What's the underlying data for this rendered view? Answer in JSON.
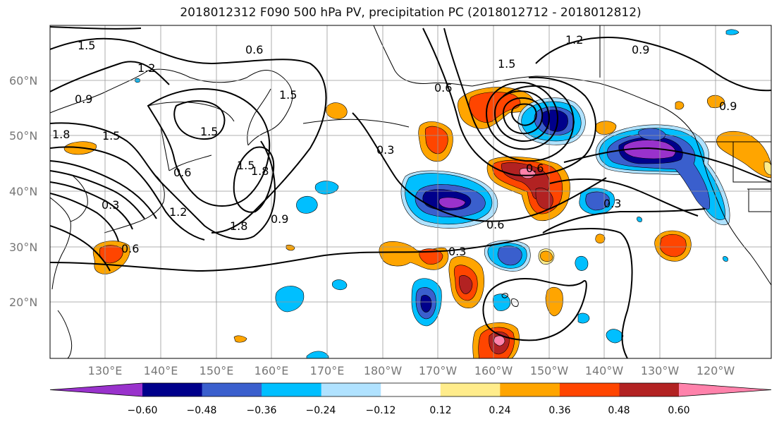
{
  "title": "2018012312 F090 500 hPa PV, precipitation PC (2018012712 - 2018012812)",
  "latitude_labels": [
    "60°N",
    "50°N",
    "40°N",
    "30°N",
    "20°N"
  ],
  "longitude_labels": [
    "130°E",
    "140°E",
    "150°E",
    "160°E",
    "170°E",
    "180°W",
    "170°W",
    "160°W",
    "150°W",
    "140°W",
    "130°W",
    "120°W"
  ],
  "contour_labels": [
    "1.5",
    "1.2",
    "0.6",
    "0.9",
    "1.5",
    "1.8",
    "1.5",
    "1.5",
    "0.6",
    "1.5",
    "1.8",
    "0.3",
    "1.2",
    "0.9",
    "1.8",
    "0.6",
    "0.3",
    "0.6",
    "0.6",
    "1.5",
    "1.2",
    "0.9",
    "0.9",
    "0.3",
    "0.6",
    "0.3"
  ],
  "colorbar": {
    "colors": [
      "#9932cc",
      "#00008b",
      "#3a5fcd",
      "#00bfff",
      "#b0e2ff",
      "#ffffff",
      "#ffec8b",
      "#ffa500",
      "#ff4500",
      "#b22222",
      "#ff82ab"
    ],
    "tick_labels": [
      "−0.60",
      "−0.48",
      "−0.36",
      "−0.24",
      "−0.12",
      "0.12",
      "0.24",
      "0.36",
      "0.48",
      "0.60"
    ]
  },
  "shading_colors": {
    "purple": "#9932cc",
    "navy": "#00008b",
    "blue": "#3a5fcd",
    "cyan": "#00bfff",
    "lightblue": "#b0e2ff",
    "yellow": "#ffec8b",
    "orange": "#ffa500",
    "red": "#ff4500",
    "darkred": "#b22222",
    "pink": "#ff82ab"
  }
}
